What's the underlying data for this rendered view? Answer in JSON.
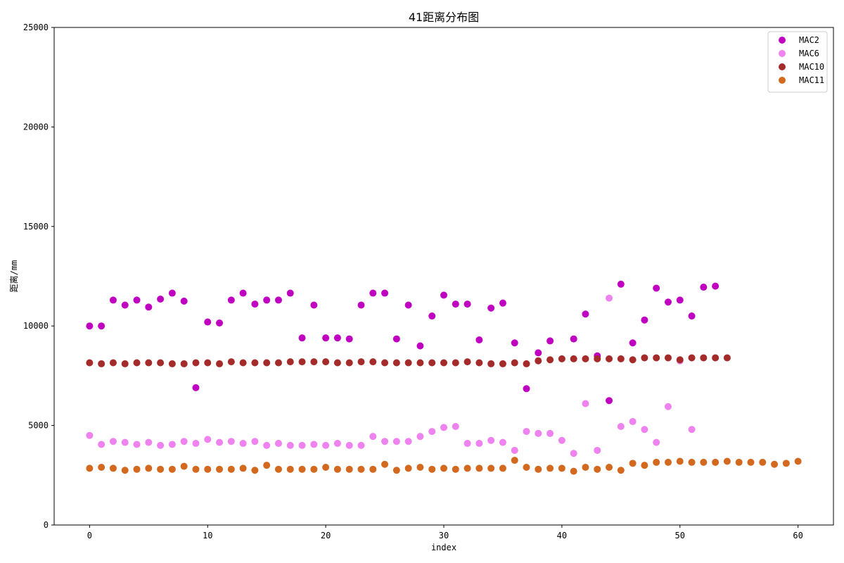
{
  "chart_data": {
    "type": "scatter",
    "title": "41距离分布图",
    "xlabel": "index",
    "ylabel": "距离/mm",
    "xlim": [
      -3,
      63
    ],
    "ylim": [
      0,
      25000
    ],
    "xticks": [
      0,
      10,
      20,
      30,
      40,
      50,
      60
    ],
    "yticks": [
      0,
      5000,
      10000,
      15000,
      20000,
      25000
    ],
    "grid": false,
    "legend_position": "top-right",
    "series": [
      {
        "name": "MAC2",
        "color": "#c000c0",
        "x": [
          0,
          1,
          2,
          3,
          4,
          5,
          6,
          7,
          8,
          9,
          10,
          11,
          12,
          13,
          14,
          15,
          16,
          17,
          18,
          19,
          20,
          21,
          22,
          23,
          24,
          25,
          26,
          27,
          28,
          29,
          30,
          31,
          32,
          33,
          34,
          35,
          36,
          37,
          38,
          39,
          40,
          41,
          42,
          43,
          44,
          45,
          46,
          47,
          48,
          49,
          50,
          51,
          52,
          53
        ],
        "y": [
          10000,
          10000,
          11300,
          11050,
          11300,
          10950,
          11350,
          11650,
          11250,
          6900,
          10200,
          10150,
          11300,
          11650,
          11100,
          11300,
          11300,
          11650,
          9400,
          11050,
          9400,
          9400,
          9350,
          11050,
          11650,
          11650,
          9350,
          11050,
          9000,
          10500,
          11550,
          11100,
          11100,
          9300,
          10900,
          11150,
          9150,
          6850,
          8650,
          9250,
          null,
          9350,
          10600,
          8500,
          6250,
          12100,
          9150,
          10300,
          11900,
          11200,
          11300,
          10500,
          11950,
          12000
        ]
      },
      {
        "name": "MAC6",
        "color": "#ee82ee",
        "x": [
          0,
          1,
          2,
          3,
          4,
          5,
          6,
          7,
          8,
          9,
          10,
          11,
          12,
          13,
          14,
          15,
          16,
          17,
          18,
          19,
          20,
          21,
          22,
          23,
          24,
          25,
          26,
          27,
          28,
          29,
          30,
          31,
          32,
          33,
          34,
          35,
          36,
          37,
          38,
          39,
          40,
          41,
          42,
          43,
          44,
          45,
          46,
          47,
          48,
          49,
          50,
          51
        ],
        "y": [
          4500,
          4050,
          4200,
          4150,
          4050,
          4150,
          4000,
          4050,
          4200,
          4100,
          4300,
          4150,
          4200,
          4100,
          4200,
          4000,
          4100,
          4000,
          4000,
          4050,
          4000,
          4100,
          4000,
          4000,
          4450,
          4200,
          4200,
          4200,
          4450,
          4700,
          4900,
          4950,
          4100,
          4100,
          4250,
          4150,
          3750,
          4700,
          4600,
          4600,
          4250,
          3600,
          6100,
          3750,
          11400,
          4950,
          5200,
          4800,
          4150,
          5950,
          8250,
          4800
        ]
      },
      {
        "name": "MAC10",
        "color": "#a52a2a",
        "x": [
          0,
          1,
          2,
          3,
          4,
          5,
          6,
          7,
          8,
          9,
          10,
          11,
          12,
          13,
          14,
          15,
          16,
          17,
          18,
          19,
          20,
          21,
          22,
          23,
          24,
          25,
          26,
          27,
          28,
          29,
          30,
          31,
          32,
          33,
          34,
          35,
          36,
          37,
          38,
          39,
          40,
          41,
          42,
          43,
          44,
          45,
          46,
          47,
          48,
          49,
          50,
          51,
          52,
          53,
          54
        ],
        "y": [
          8150,
          8100,
          8150,
          8100,
          8150,
          8150,
          8150,
          8100,
          8100,
          8150,
          8150,
          8100,
          8200,
          8150,
          8150,
          8150,
          8150,
          8200,
          8200,
          8200,
          8200,
          8150,
          8150,
          8200,
          8200,
          8150,
          8150,
          8150,
          8150,
          8150,
          8150,
          8150,
          8200,
          8150,
          8100,
          8100,
          8150,
          8100,
          8250,
          8300,
          8350,
          8350,
          8350,
          8350,
          8350,
          8350,
          8300,
          8400,
          8400,
          8400,
          8300,
          8400,
          8400,
          8400,
          8400
        ]
      },
      {
        "name": "MAC11",
        "color": "#d2691e",
        "x": [
          0,
          1,
          2,
          3,
          4,
          5,
          6,
          7,
          8,
          9,
          10,
          11,
          12,
          13,
          14,
          15,
          16,
          17,
          18,
          19,
          20,
          21,
          22,
          23,
          24,
          25,
          26,
          27,
          28,
          29,
          30,
          31,
          32,
          33,
          34,
          35,
          36,
          37,
          38,
          39,
          40,
          41,
          42,
          43,
          44,
          45,
          46,
          47,
          48,
          49,
          50,
          51,
          52,
          53,
          54,
          55,
          56,
          57,
          58,
          59,
          60
        ],
        "y": [
          2850,
          2900,
          2850,
          2750,
          2800,
          2850,
          2800,
          2800,
          2950,
          2800,
          2800,
          2800,
          2800,
          2850,
          2750,
          3000,
          2800,
          2800,
          2800,
          2800,
          2900,
          2800,
          2800,
          2800,
          2800,
          3050,
          2750,
          2850,
          2900,
          2800,
          2850,
          2800,
          2850,
          2850,
          2850,
          2850,
          3250,
          2900,
          2800,
          2850,
          2850,
          2700,
          2900,
          2800,
          2900,
          2750,
          3100,
          3000,
          3150,
          3150,
          3200,
          3150,
          3150,
          3150,
          3200,
          3150,
          3150,
          3150,
          3050,
          3100,
          3200
        ]
      }
    ]
  }
}
